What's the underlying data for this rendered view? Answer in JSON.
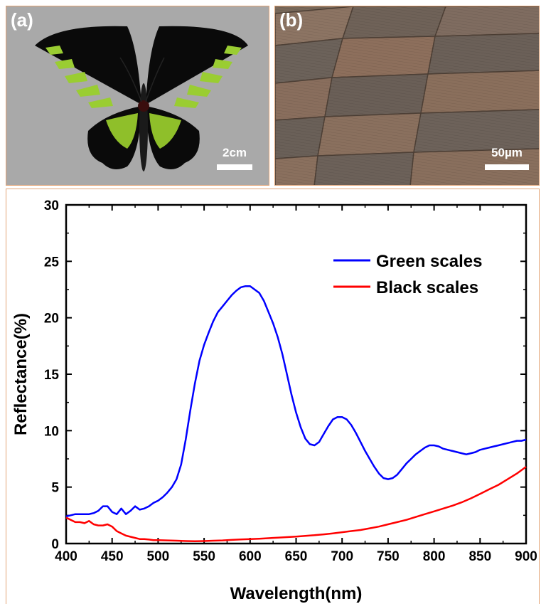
{
  "panels": {
    "a": {
      "label": "(a)",
      "scale_label": "2cm"
    },
    "b": {
      "label": "(b)",
      "scale_label": "50µm"
    }
  },
  "colors": {
    "green_series": "#0000ff",
    "black_series": "#ff0000",
    "panel_border": "#e3a476",
    "butterfly_green": "#9acd32"
  },
  "chart_data": {
    "type": "line",
    "xlabel": "Wavelength(nm)",
    "ylabel": "Reflectance(%)",
    "xlim": [
      400,
      900
    ],
    "ylim": [
      0,
      30
    ],
    "xticks": [
      400,
      450,
      500,
      550,
      600,
      650,
      700,
      750,
      800,
      850,
      900
    ],
    "yticks": [
      0,
      5,
      10,
      15,
      20,
      25,
      30
    ],
    "grid": false,
    "legend_position": "top-right",
    "series": [
      {
        "name": "Green scales",
        "color": "#0000ff",
        "x": [
          400,
          405,
          410,
          415,
          420,
          425,
          430,
          435,
          440,
          445,
          450,
          455,
          460,
          465,
          470,
          475,
          480,
          485,
          490,
          495,
          500,
          505,
          510,
          515,
          520,
          525,
          530,
          535,
          540,
          545,
          550,
          555,
          560,
          565,
          570,
          575,
          580,
          585,
          590,
          595,
          600,
          605,
          610,
          615,
          620,
          625,
          630,
          635,
          640,
          645,
          650,
          655,
          660,
          665,
          670,
          675,
          680,
          685,
          690,
          695,
          700,
          705,
          710,
          715,
          720,
          725,
          730,
          735,
          740,
          745,
          750,
          755,
          760,
          765,
          770,
          775,
          780,
          785,
          790,
          795,
          800,
          805,
          810,
          815,
          820,
          825,
          830,
          835,
          840,
          845,
          850,
          855,
          860,
          865,
          870,
          875,
          880,
          885,
          890,
          895,
          900
        ],
        "values": [
          2.4,
          2.5,
          2.6,
          2.6,
          2.6,
          2.6,
          2.7,
          2.9,
          3.3,
          3.3,
          2.8,
          2.6,
          3.1,
          2.6,
          2.9,
          3.3,
          3.0,
          3.1,
          3.3,
          3.6,
          3.8,
          4.1,
          4.5,
          5.0,
          5.7,
          7.0,
          9.2,
          11.8,
          14.2,
          16.2,
          17.6,
          18.7,
          19.7,
          20.5,
          21.0,
          21.5,
          22.0,
          22.4,
          22.7,
          22.8,
          22.8,
          22.5,
          22.2,
          21.5,
          20.5,
          19.5,
          18.3,
          16.8,
          15.0,
          13.2,
          11.6,
          10.3,
          9.3,
          8.8,
          8.7,
          9.0,
          9.7,
          10.4,
          11.0,
          11.2,
          11.2,
          11.0,
          10.5,
          9.8,
          9.0,
          8.2,
          7.5,
          6.8,
          6.2,
          5.8,
          5.7,
          5.8,
          6.1,
          6.6,
          7.1,
          7.5,
          7.9,
          8.2,
          8.5,
          8.7,
          8.7,
          8.6,
          8.4,
          8.3,
          8.2,
          8.1,
          8.0,
          7.9,
          8.0,
          8.1,
          8.3,
          8.4,
          8.5,
          8.6,
          8.7,
          8.8,
          8.9,
          9.0,
          9.1,
          9.1,
          9.2
        ]
      },
      {
        "name": "Black scales",
        "color": "#ff0000",
        "x": [
          400,
          405,
          410,
          415,
          420,
          425,
          430,
          435,
          440,
          445,
          450,
          455,
          460,
          465,
          470,
          475,
          480,
          485,
          490,
          495,
          500,
          510,
          520,
          530,
          540,
          550,
          560,
          570,
          580,
          590,
          600,
          610,
          620,
          630,
          640,
          650,
          660,
          670,
          680,
          690,
          700,
          710,
          720,
          730,
          740,
          750,
          760,
          770,
          780,
          790,
          800,
          810,
          820,
          830,
          840,
          850,
          860,
          870,
          880,
          890,
          900
        ],
        "values": [
          2.3,
          2.1,
          1.9,
          1.9,
          1.8,
          2.0,
          1.7,
          1.6,
          1.6,
          1.7,
          1.5,
          1.1,
          0.9,
          0.7,
          0.6,
          0.5,
          0.4,
          0.4,
          0.35,
          0.3,
          0.3,
          0.28,
          0.25,
          0.22,
          0.2,
          0.22,
          0.25,
          0.28,
          0.32,
          0.36,
          0.4,
          0.43,
          0.47,
          0.52,
          0.57,
          0.62,
          0.68,
          0.74,
          0.81,
          0.9,
          1.0,
          1.1,
          1.2,
          1.35,
          1.5,
          1.7,
          1.9,
          2.1,
          2.35,
          2.6,
          2.85,
          3.1,
          3.35,
          3.65,
          4.0,
          4.4,
          4.8,
          5.2,
          5.7,
          6.2,
          6.8
        ]
      }
    ]
  }
}
